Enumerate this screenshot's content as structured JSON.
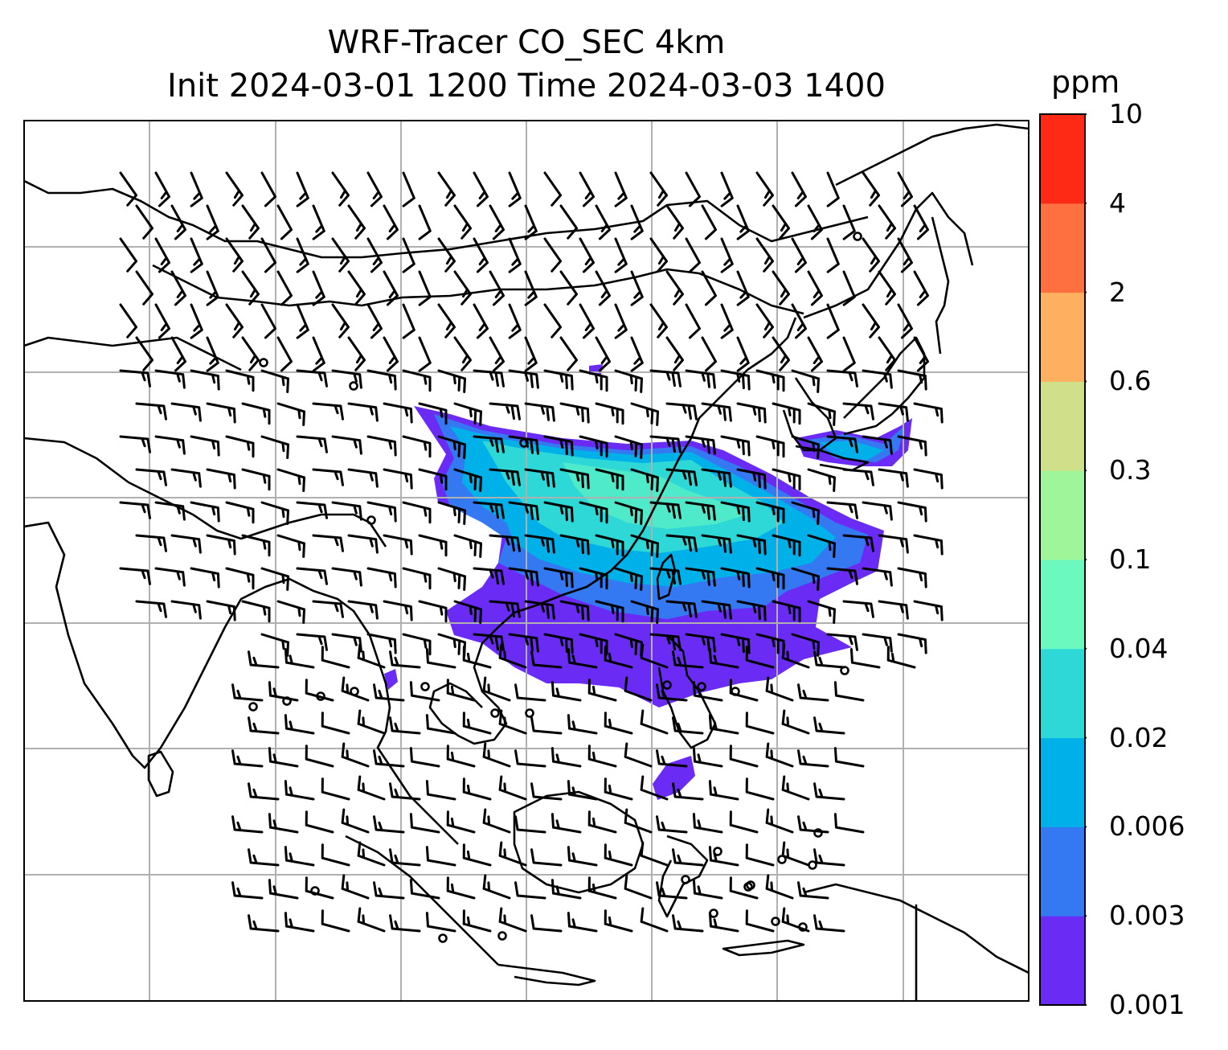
{
  "title": {
    "line1": "WRF-Tracer CO_SEC 4km",
    "line2": "Init 2024-03-01 1200 Time 2024-03-03 1400"
  },
  "colorbar": {
    "unit": "ppm",
    "levels": [
      "0.001",
      "0.003",
      "0.006",
      "0.02",
      "0.04",
      "0.1",
      "0.3",
      "0.6",
      "2",
      "4",
      "10"
    ],
    "colors": [
      "#6a2cf5",
      "#3478f2",
      "#00b0e8",
      "#2ed8d6",
      "#6cf9c0",
      "#9ef59a",
      "#d0e08a",
      "#fcb060",
      "#ff7040",
      "#ff2a15"
    ]
  },
  "map": {
    "land_outline_color": "#000000",
    "gridline_color": "#b0b0b0",
    "plume_levels_shown": [
      "0.001",
      "0.003",
      "0.006",
      "0.02",
      "0.04"
    ]
  }
}
